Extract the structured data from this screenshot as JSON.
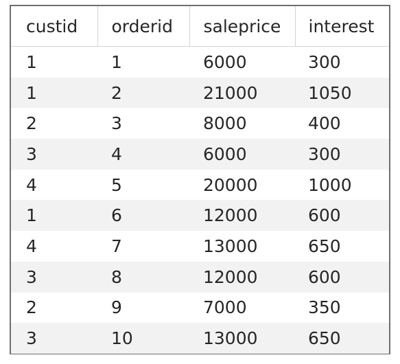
{
  "grid": {
    "columns": [
      "custid",
      "orderid",
      "saleprice",
      "interest"
    ],
    "rows": [
      [
        "1",
        "1",
        "6000",
        "300"
      ],
      [
        "1",
        "2",
        "21000",
        "1050"
      ],
      [
        "2",
        "3",
        "8000",
        "400"
      ],
      [
        "3",
        "4",
        "6000",
        "300"
      ],
      [
        "4",
        "5",
        "20000",
        "1000"
      ],
      [
        "1",
        "6",
        "12000",
        "600"
      ],
      [
        "4",
        "7",
        "13000",
        "650"
      ],
      [
        "3",
        "8",
        "12000",
        "600"
      ],
      [
        "2",
        "9",
        "7000",
        "350"
      ],
      [
        "3",
        "10",
        "13000",
        "650"
      ]
    ]
  },
  "colors": {
    "row_alt": "#f2f2f2",
    "border": "#6f6f6f",
    "text": "#262626"
  }
}
